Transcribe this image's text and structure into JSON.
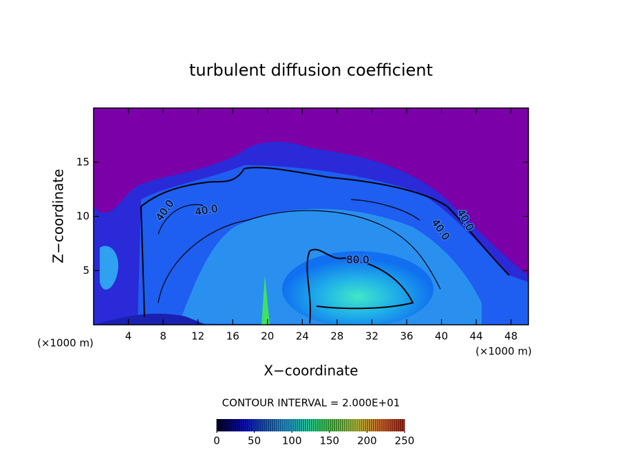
{
  "chart_data": {
    "type": "contour",
    "title": "turbulent diffusion coefficient",
    "x_label": "X−coordinate",
    "y_label": "Z−coordinate",
    "unit_label": "(×1000 m)",
    "xlim": [
      0,
      50
    ],
    "ylim": [
      0,
      20
    ],
    "xticks": [
      4,
      8,
      12,
      16,
      20,
      24,
      28,
      32,
      36,
      40,
      44,
      48
    ],
    "yticks": [
      5,
      10,
      15
    ],
    "contour_labels": [
      {
        "value": 40,
        "label": "40.0"
      },
      {
        "value": 40,
        "label": "40.0"
      },
      {
        "value": 40,
        "label": "40.0"
      },
      {
        "value": 40,
        "label": "40.0"
      },
      {
        "value": 80,
        "label": "80.0"
      }
    ],
    "contour_interval": "CONTOUR INTERVAL = 2.000E+01",
    "colorbar_lim": [
      0,
      250
    ],
    "colorbar_ticks": [
      0,
      50,
      100,
      150,
      200,
      250
    ]
  }
}
